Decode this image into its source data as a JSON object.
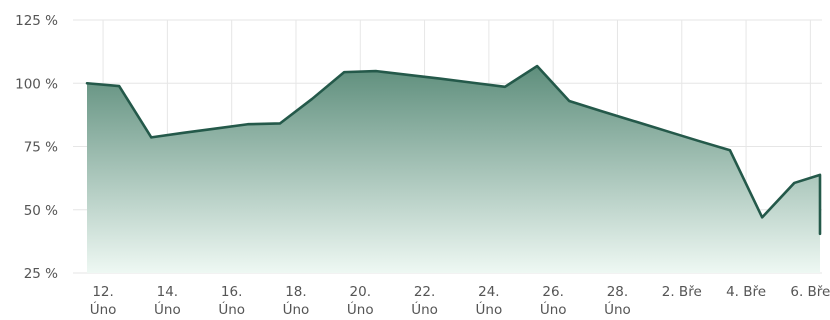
{
  "chart_data": {
    "type": "area",
    "title": "",
    "xlabel": "",
    "ylabel": "",
    "ylim": [
      25,
      125
    ],
    "y_ticks": [
      {
        "value": 25,
        "label": "25 %"
      },
      {
        "value": 50,
        "label": "50 %"
      },
      {
        "value": 75,
        "label": "75 %"
      },
      {
        "value": 100,
        "label": "100 %"
      },
      {
        "value": 125,
        "label": "125 %"
      }
    ],
    "x_ticks": [
      {
        "day": 12,
        "lines": [
          "12.",
          "Úno"
        ]
      },
      {
        "day": 14,
        "lines": [
          "14.",
          "Úno"
        ]
      },
      {
        "day": 16,
        "lines": [
          "16.",
          "Úno"
        ]
      },
      {
        "day": 18,
        "lines": [
          "18.",
          "Úno"
        ]
      },
      {
        "day": 20,
        "lines": [
          "20.",
          "Úno"
        ]
      },
      {
        "day": 22,
        "lines": [
          "22.",
          "Úno"
        ]
      },
      {
        "day": 24,
        "lines": [
          "24.",
          "Úno"
        ]
      },
      {
        "day": 26,
        "lines": [
          "26.",
          "Úno"
        ]
      },
      {
        "day": 28,
        "lines": [
          "28.",
          "Úno"
        ]
      },
      {
        "day": 30,
        "lines": [
          "2. Bře"
        ]
      },
      {
        "day": 32,
        "lines": [
          "4. Bře"
        ]
      },
      {
        "day": 34,
        "lines": [
          "6. Bře"
        ]
      }
    ],
    "x_range": [
      11,
      34.3
    ],
    "grid": true,
    "series": [
      {
        "points": [
          {
            "x": 11.5,
            "y": 100
          },
          {
            "x": 12.5,
            "y": 98.9
          },
          {
            "x": 13.5,
            "y": 78.6
          },
          {
            "x": 14.5,
            "y": 80.4
          },
          {
            "x": 15.5,
            "y": 82.1
          },
          {
            "x": 16.5,
            "y": 83.8
          },
          {
            "x": 17.5,
            "y": 84.1
          },
          {
            "x": 18.5,
            "y": 93.8
          },
          {
            "x": 19.5,
            "y": 104.4
          },
          {
            "x": 20.5,
            "y": 104.8
          },
          {
            "x": 21.5,
            "y": 103.3
          },
          {
            "x": 22.5,
            "y": 101.8
          },
          {
            "x": 23.5,
            "y": 100.2
          },
          {
            "x": 24.5,
            "y": 98.6
          },
          {
            "x": 25.5,
            "y": 106.8
          },
          {
            "x": 26.5,
            "y": 93.0
          },
          {
            "x": 27.5,
            "y": 89.0
          },
          {
            "x": 28.5,
            "y": 85.1
          },
          {
            "x": 29.5,
            "y": 81.2
          },
          {
            "x": 30.5,
            "y": 77.3
          },
          {
            "x": 31.5,
            "y": 73.5
          },
          {
            "x": 32.5,
            "y": 47.0
          },
          {
            "x": 33.5,
            "y": 60.6
          },
          {
            "x": 34.5,
            "y": 63.8
          },
          {
            "x": 35.5,
            "y": 40.5
          }
        ]
      }
    ]
  },
  "colors": {
    "line": "#24594A",
    "fill_top": "#5E8E7C",
    "fill_bottom": "#EEF8F3",
    "grid": "#E6E6E6",
    "text": "#555555"
  }
}
